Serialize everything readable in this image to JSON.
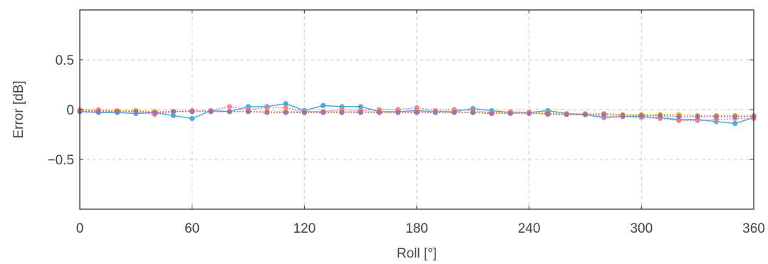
{
  "chart_data": {
    "type": "line",
    "title": "",
    "xlabel": "Roll [°]",
    "ylabel": "Error [dB]",
    "xlim": [
      0,
      360
    ],
    "ylim": [
      -1,
      1
    ],
    "xticks": [
      0,
      60,
      120,
      180,
      240,
      300,
      360
    ],
    "xtick_labels": [
      "0",
      "60",
      "120",
      "180",
      "240",
      "300",
      "360"
    ],
    "yticks": [
      0.5,
      0,
      -0.5
    ],
    "ytick_labels": [
      "0.5",
      "0",
      "−0.5"
    ],
    "grid": true,
    "legend": "none",
    "x": [
      0,
      10,
      20,
      30,
      40,
      50,
      60,
      70,
      80,
      90,
      100,
      110,
      120,
      130,
      140,
      150,
      160,
      170,
      180,
      190,
      200,
      210,
      220,
      230,
      240,
      250,
      260,
      270,
      280,
      290,
      300,
      310,
      320,
      330,
      340,
      350,
      360
    ],
    "series": [
      {
        "color": "#3aa6dd",
        "values": [
          -0.02,
          -0.03,
          -0.03,
          -0.04,
          -0.03,
          -0.06,
          -0.09,
          -0.01,
          -0.02,
          0.03,
          0.03,
          0.06,
          -0.01,
          0.04,
          0.03,
          0.03,
          -0.02,
          -0.02,
          -0.01,
          -0.02,
          -0.02,
          0.01,
          -0.01,
          -0.03,
          -0.03,
          -0.01,
          -0.04,
          -0.05,
          -0.08,
          -0.07,
          -0.07,
          -0.08,
          -0.1,
          -0.1,
          -0.12,
          -0.14,
          -0.08
        ]
      },
      {
        "color": "#e8b800",
        "values": [
          0.0,
          0.0,
          -0.01,
          -0.01,
          -0.02,
          -0.02,
          -0.02,
          -0.02,
          -0.02,
          -0.02,
          -0.02,
          -0.02,
          -0.02,
          -0.02,
          -0.02,
          -0.02,
          -0.02,
          -0.02,
          -0.02,
          -0.02,
          -0.02,
          -0.03,
          -0.03,
          -0.03,
          -0.03,
          -0.03,
          -0.04,
          -0.04,
          -0.04,
          -0.05,
          -0.05,
          -0.05,
          -0.05,
          -0.06,
          -0.06,
          -0.06,
          -0.06
        ]
      },
      {
        "color": "#ee7e8c",
        "values": [
          -0.01,
          -0.01,
          -0.02,
          -0.02,
          -0.05,
          -0.02,
          -0.01,
          -0.01,
          0.03,
          0.0,
          0.02,
          0.02,
          -0.02,
          -0.02,
          0.0,
          -0.01,
          0.0,
          0.0,
          0.02,
          -0.01,
          0.0,
          -0.01,
          -0.03,
          -0.02,
          -0.03,
          -0.05,
          -0.05,
          -0.05,
          -0.07,
          -0.07,
          -0.08,
          -0.09,
          -0.11,
          -0.11,
          -0.1,
          -0.09,
          -0.09
        ]
      },
      {
        "color": "#9b6fb0",
        "values": [
          -0.02,
          -0.02,
          -0.02,
          -0.02,
          -0.03,
          -0.02,
          -0.02,
          -0.02,
          -0.02,
          -0.02,
          -0.03,
          -0.03,
          -0.03,
          -0.03,
          -0.03,
          -0.03,
          -0.03,
          -0.03,
          -0.03,
          -0.03,
          -0.03,
          -0.03,
          -0.04,
          -0.04,
          -0.04,
          -0.04,
          -0.05,
          -0.05,
          -0.05,
          -0.06,
          -0.06,
          -0.06,
          -0.07,
          -0.07,
          -0.07,
          -0.07,
          -0.07
        ]
      }
    ]
  }
}
